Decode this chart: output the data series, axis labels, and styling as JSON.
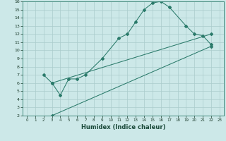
{
  "title": "",
  "xlabel": "Humidex (Indice chaleur)",
  "bg_color": "#cce8e8",
  "grid_color": "#aacccc",
  "line_color": "#2a7a6a",
  "xlim": [
    -0.5,
    23.5
  ],
  "ylim": [
    2,
    16
  ],
  "xticks": [
    0,
    1,
    2,
    3,
    4,
    5,
    6,
    7,
    8,
    9,
    10,
    11,
    12,
    13,
    14,
    15,
    16,
    17,
    18,
    19,
    20,
    21,
    22,
    23
  ],
  "yticks": [
    2,
    3,
    4,
    5,
    6,
    7,
    8,
    9,
    10,
    11,
    12,
    13,
    14,
    15,
    16
  ],
  "line1_x": [
    2,
    3,
    4,
    5,
    6,
    7,
    9,
    11,
    12,
    13,
    14,
    15,
    16,
    17,
    19,
    20,
    21,
    22
  ],
  "line1_y": [
    7,
    6.0,
    4.5,
    6.5,
    6.5,
    7.0,
    9.0,
    11.5,
    12.0,
    13.5,
    15.0,
    15.8,
    16.0,
    15.3,
    13.0,
    12.0,
    11.8,
    10.7
  ],
  "line2_x": [
    3,
    22
  ],
  "line2_y": [
    2,
    10.5
  ],
  "line3_x": [
    3,
    22
  ],
  "line3_y": [
    6.0,
    12.0
  ]
}
